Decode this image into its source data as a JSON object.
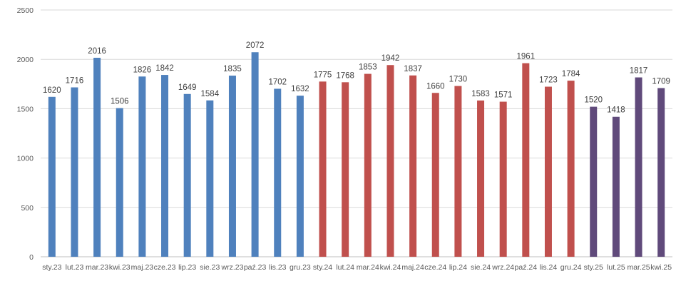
{
  "chart_data": {
    "type": "bar",
    "title": "",
    "xlabel": "",
    "ylabel": "",
    "ylim": [
      0,
      2500
    ],
    "yticks": [
      0,
      500,
      1000,
      1500,
      2000,
      2500
    ],
    "grid": true,
    "legend": "none",
    "categories": [
      "sty.23",
      "lut.23",
      "mar.23",
      "kwi.23",
      "maj.23",
      "cze.23",
      "lip.23",
      "sie.23",
      "wrz.23",
      "paź.23",
      "lis.23",
      "gru.23",
      "sty.24",
      "lut.24",
      "mar.24",
      "kwi.24",
      "maj.24",
      "cze.24",
      "lip.24",
      "sie.24",
      "wrz.24",
      "paź.24",
      "lis.24",
      "gru.24",
      "sty.25",
      "lut.25",
      "mar.25",
      "kwi.25"
    ],
    "values": [
      1620,
      1716,
      2016,
      1506,
      1826,
      1842,
      1649,
      1584,
      1835,
      2072,
      1702,
      1632,
      1775,
      1768,
      1853,
      1942,
      1837,
      1660,
      1730,
      1583,
      1571,
      1961,
      1723,
      1784,
      1520,
      1418,
      1817,
      1709
    ],
    "colors": {
      "2023": "#4f81bd",
      "2024": "#c0504d",
      "2025": "#604a7b"
    },
    "data_labels": true
  }
}
